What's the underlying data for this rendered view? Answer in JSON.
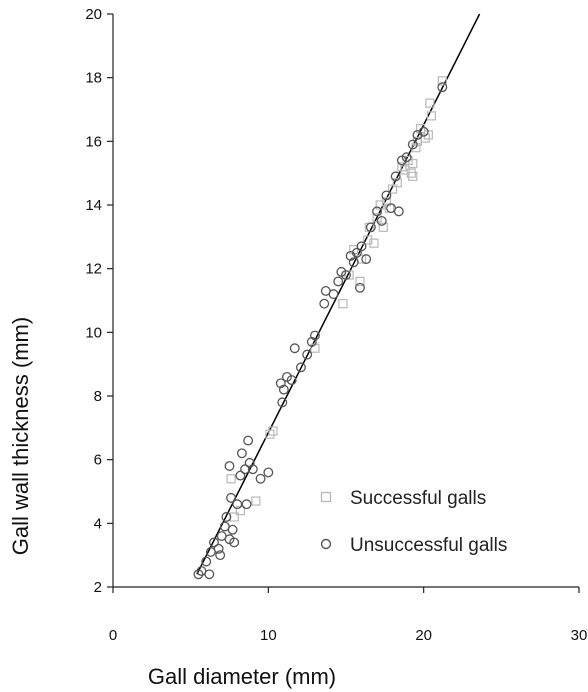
{
  "chart_data": {
    "type": "scatter",
    "title": "",
    "xlabel": "Gall diameter (mm)",
    "ylabel": "Gall wall thickness (mm)",
    "xlim": [
      0,
      30
    ],
    "ylim": [
      2,
      20
    ],
    "x_ticks": [
      "0",
      "10",
      "20",
      "30"
    ],
    "y_ticks": [
      "2",
      "4",
      "6",
      "8",
      "10",
      "12",
      "14",
      "16",
      "18",
      "20"
    ],
    "grid": false,
    "legend_position": "bottom-right",
    "colors": {
      "successful": "#b8b8b8",
      "unsuccessful": "#555555",
      "trend_line": "#000000"
    },
    "trend_line": {
      "x": [
        5.4,
        23.6
      ],
      "y": [
        2.4,
        20.0
      ]
    },
    "series": [
      {
        "name": "Successful galls",
        "marker": "square",
        "points": [
          [
            7.6,
            5.4
          ],
          [
            7.8,
            4.2
          ],
          [
            8.2,
            4.4
          ],
          [
            9.2,
            4.7
          ],
          [
            10.1,
            6.8
          ],
          [
            10.3,
            6.9
          ],
          [
            13.0,
            9.5
          ],
          [
            14.8,
            10.9
          ],
          [
            15.2,
            11.8
          ],
          [
            15.5,
            12.6
          ],
          [
            15.9,
            11.6
          ],
          [
            16.0,
            12.3
          ],
          [
            16.4,
            12.9
          ],
          [
            16.5,
            13.3
          ],
          [
            16.8,
            12.8
          ],
          [
            17.0,
            13.6
          ],
          [
            17.2,
            14.0
          ],
          [
            17.4,
            13.3
          ],
          [
            17.6,
            14.1
          ],
          [
            17.8,
            13.9
          ],
          [
            18.0,
            14.5
          ],
          [
            18.3,
            14.7
          ],
          [
            18.6,
            15.2
          ],
          [
            18.8,
            15.1
          ],
          [
            19.0,
            15.4
          ],
          [
            19.2,
            15.0
          ],
          [
            19.3,
            15.3
          ],
          [
            19.3,
            14.9
          ],
          [
            19.5,
            15.8
          ],
          [
            19.6,
            16.0
          ],
          [
            19.8,
            16.4
          ],
          [
            20.1,
            16.1
          ],
          [
            20.3,
            16.2
          ],
          [
            20.4,
            17.2
          ],
          [
            20.5,
            16.8
          ],
          [
            21.2,
            17.9
          ]
        ]
      },
      {
        "name": "Unsuccessful galls",
        "marker": "circle",
        "points": [
          [
            5.5,
            2.4
          ],
          [
            5.7,
            2.5
          ],
          [
            6.0,
            2.8
          ],
          [
            6.2,
            2.4
          ],
          [
            6.3,
            3.1
          ],
          [
            6.5,
            3.4
          ],
          [
            6.8,
            3.2
          ],
          [
            6.9,
            3.0
          ],
          [
            7.0,
            3.6
          ],
          [
            7.2,
            3.9
          ],
          [
            7.3,
            4.2
          ],
          [
            7.5,
            3.5
          ],
          [
            7.5,
            5.8
          ],
          [
            7.6,
            4.8
          ],
          [
            7.7,
            3.8
          ],
          [
            7.8,
            3.4
          ],
          [
            8.0,
            4.6
          ],
          [
            8.2,
            5.5
          ],
          [
            8.3,
            6.2
          ],
          [
            8.5,
            5.7
          ],
          [
            8.6,
            4.6
          ],
          [
            8.7,
            6.6
          ],
          [
            8.8,
            5.9
          ],
          [
            9.0,
            5.7
          ],
          [
            9.5,
            5.4
          ],
          [
            10.0,
            5.6
          ],
          [
            10.8,
            8.4
          ],
          [
            10.9,
            7.8
          ],
          [
            11.0,
            8.2
          ],
          [
            11.2,
            8.6
          ],
          [
            11.5,
            8.5
          ],
          [
            11.7,
            9.5
          ],
          [
            12.1,
            8.9
          ],
          [
            12.5,
            9.3
          ],
          [
            12.8,
            9.7
          ],
          [
            13.0,
            9.9
          ],
          [
            13.6,
            10.9
          ],
          [
            13.7,
            11.3
          ],
          [
            14.2,
            11.2
          ],
          [
            14.5,
            11.6
          ],
          [
            14.7,
            11.9
          ],
          [
            15.0,
            11.8
          ],
          [
            15.3,
            12.4
          ],
          [
            15.5,
            12.2
          ],
          [
            15.7,
            12.5
          ],
          [
            15.9,
            11.4
          ],
          [
            16.0,
            12.7
          ],
          [
            16.3,
            12.3
          ],
          [
            16.6,
            13.3
          ],
          [
            17.0,
            13.8
          ],
          [
            17.3,
            13.5
          ],
          [
            17.6,
            14.3
          ],
          [
            17.9,
            13.9
          ],
          [
            18.2,
            14.9
          ],
          [
            18.4,
            13.8
          ],
          [
            18.6,
            15.4
          ],
          [
            18.9,
            15.5
          ],
          [
            19.3,
            15.9
          ],
          [
            19.6,
            16.2
          ],
          [
            20.0,
            16.3
          ],
          [
            21.2,
            17.7
          ]
        ]
      }
    ]
  }
}
